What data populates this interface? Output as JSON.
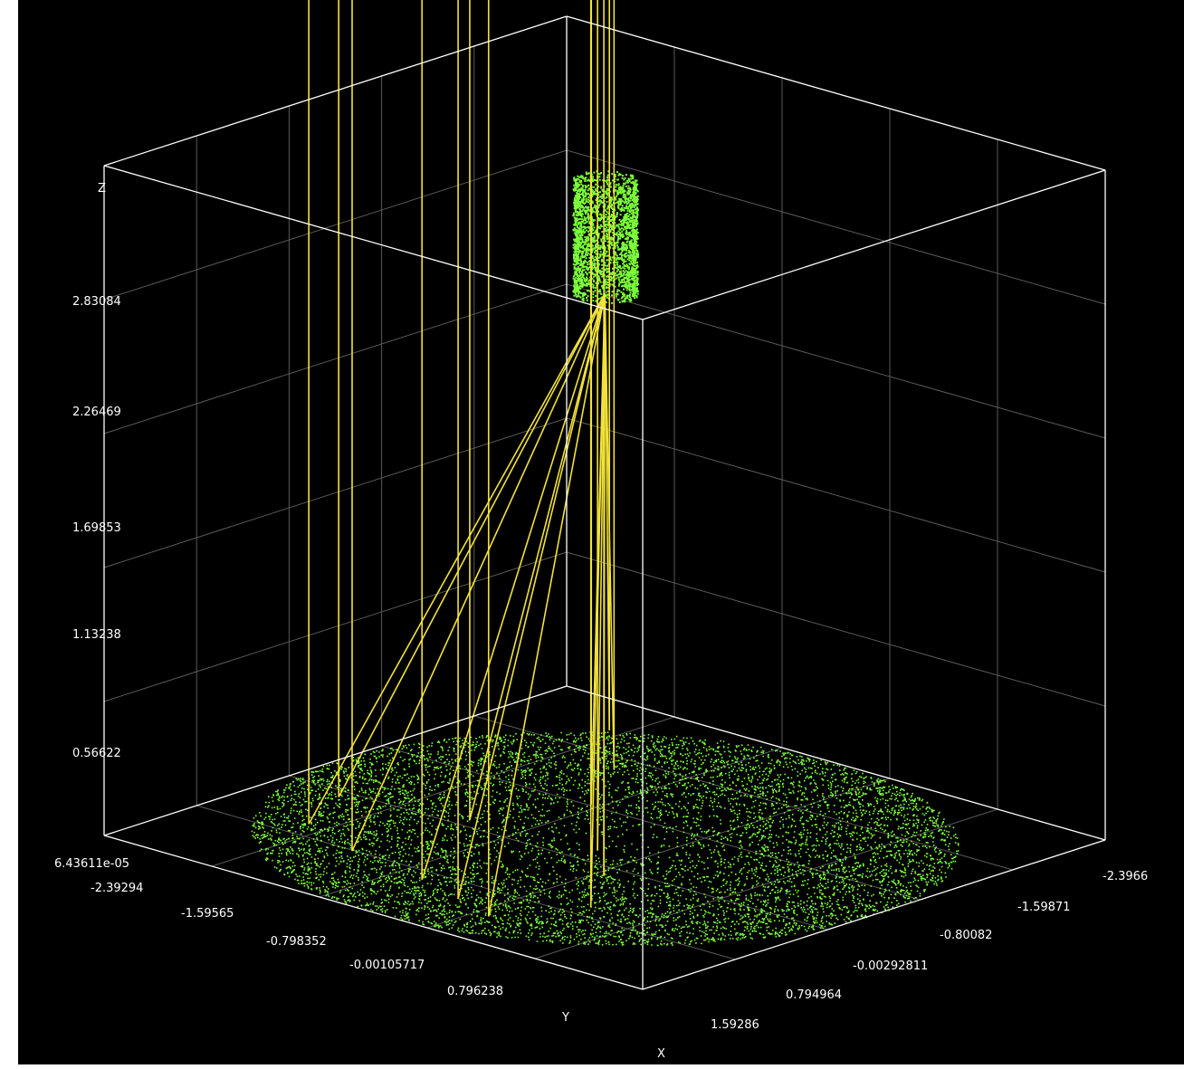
{
  "chart_data": {
    "type": "scatter3d",
    "title": "",
    "background": "#000000",
    "colors": {
      "box": "#ffffff",
      "grid": "#5a5a5a",
      "points": "#7cff3a",
      "rays": "#f2e23a"
    },
    "axes": {
      "x": {
        "label": "X",
        "ticks": [
          "-2.3966",
          "-1.59871",
          "-0.80082",
          "-0.00292811",
          "0.794964",
          "1.59286"
        ],
        "range": [
          -2.3966,
          2.391
        ]
      },
      "y": {
        "label": "Y",
        "ticks": [
          "-2.39294",
          "-1.59565",
          "-0.798352",
          "-0.00105717",
          "0.796238"
        ],
        "range": [
          -2.39294,
          2.39
        ]
      },
      "z": {
        "label": "Z",
        "ticks": [
          "6.43611e-05",
          "0.56622",
          "1.13238",
          "1.69853",
          "2.26469",
          "2.83084"
        ],
        "range": [
          0,
          3.2
        ]
      }
    },
    "series": [
      {
        "kind": "points",
        "shape": "disk",
        "center": [
          0,
          0
        ],
        "radius": 2.39,
        "z": 0.0,
        "approx_count": 9000
      },
      {
        "kind": "points",
        "shape": "cylinder",
        "center": [
          0,
          0
        ],
        "radius": 0.22,
        "z_range": [
          2.6,
          3.15
        ]
      },
      {
        "kind": "rays",
        "focus": [
          0,
          0,
          2.6
        ],
        "count": 13
      }
    ]
  }
}
